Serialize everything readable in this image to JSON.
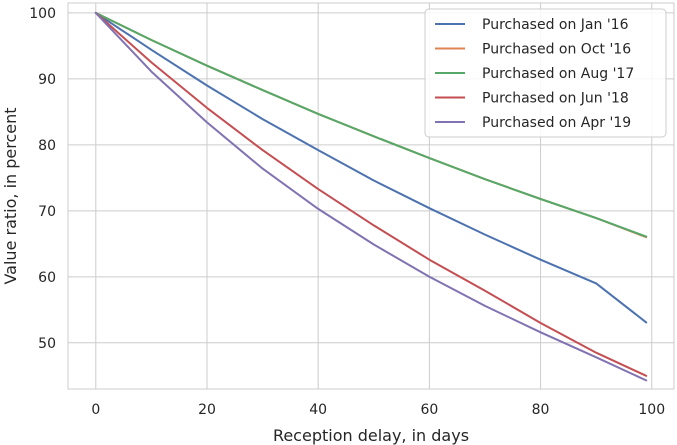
{
  "chart_data": {
    "type": "line",
    "title": "",
    "xlabel": "Reception delay, in days",
    "ylabel": "Value ratio, in percent",
    "xlim": [
      -5,
      104
    ],
    "ylim": [
      43,
      101.5
    ],
    "xticks": [
      0,
      20,
      40,
      60,
      80,
      100
    ],
    "yticks": [
      50,
      60,
      70,
      80,
      90,
      100
    ],
    "grid": true,
    "legend_position": "top-right",
    "series": [
      {
        "name": "Purchased on Jan '16",
        "color": "#4c72b0",
        "x": [
          0,
          10,
          20,
          30,
          40,
          50,
          60,
          70,
          80,
          90,
          99
        ],
        "y": [
          100,
          94.4,
          89.0,
          83.9,
          79.2,
          74.6,
          70.4,
          66.4,
          62.6,
          59.0,
          53.1
        ]
      },
      {
        "name": "Purchased on Oct '16",
        "color": "#dd8452",
        "x": [
          0,
          10,
          20,
          30,
          40,
          50,
          60,
          70,
          80,
          90,
          99
        ],
        "y": [
          100,
          95.9,
          92.0,
          88.3,
          84.7,
          81.3,
          78.0,
          74.8,
          71.8,
          68.9,
          66.0
        ]
      },
      {
        "name": "Purchased on Aug '17",
        "color": "#55a868",
        "x": [
          0,
          10,
          20,
          30,
          40,
          50,
          60,
          70,
          80,
          90,
          99
        ],
        "y": [
          100,
          95.9,
          92.0,
          88.3,
          84.7,
          81.3,
          78.0,
          74.8,
          71.8,
          68.9,
          66.1
        ]
      },
      {
        "name": "Purchased on Jun '18",
        "color": "#c44e52",
        "x": [
          0,
          10,
          20,
          30,
          40,
          50,
          60,
          70,
          80,
          90,
          99
        ],
        "y": [
          100,
          92.5,
          85.6,
          79.2,
          73.3,
          67.8,
          62.6,
          57.9,
          53.0,
          48.5,
          45.0
        ]
      },
      {
        "name": "Purchased on Apr '19",
        "color": "#8172b2",
        "x": [
          0,
          10,
          20,
          30,
          40,
          50,
          60,
          70,
          80,
          90,
          99
        ],
        "y": [
          100,
          91.1,
          83.4,
          76.4,
          70.3,
          64.9,
          60.0,
          55.6,
          51.6,
          47.8,
          44.3
        ]
      }
    ]
  }
}
